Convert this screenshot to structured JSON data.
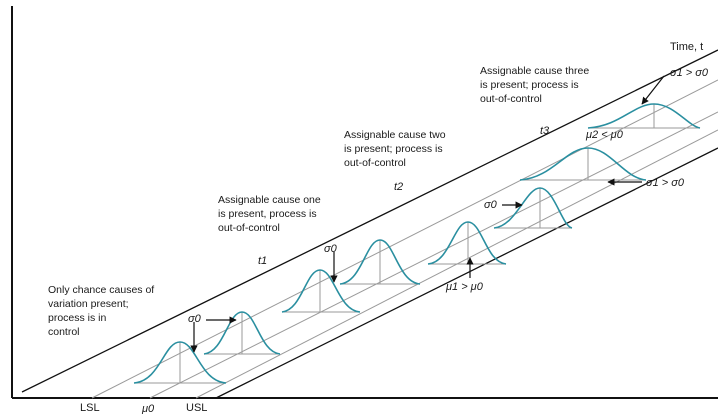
{
  "time_axis_label": "Time, t",
  "spec_limits": {
    "lsl": "LSL",
    "mu0": "μ0",
    "usl": "USL"
  },
  "time_marks": {
    "t1": "t1",
    "t2": "t2",
    "t3": "t3"
  },
  "annotations": {
    "in_control": [
      "Only chance causes of",
      "variation present;",
      "process is in",
      "control"
    ],
    "cause_one": [
      "Assignable cause one",
      "is present, process is",
      "out-of-control"
    ],
    "cause_two": [
      "Assignable cause two",
      "is present; process is",
      "out-of-control"
    ],
    "cause_three": [
      "Assignable cause three",
      "is present; process is",
      "out-of-control"
    ]
  },
  "labels": {
    "sigma0_a": "σ0",
    "sigma0_b": "σ0",
    "sigma0_c": "σ0",
    "mu1_gt_mu0": "μ1 > μ0",
    "sigma1_gt_sigma0_mid": "σ1 > σ0",
    "mu2_lt_mu0": "μ2 < μ0",
    "sigma1_gt_sigma0_top": "σ1 > σ0"
  },
  "colors": {
    "curve": "#2a8fa0",
    "line": "#111111",
    "guide": "#9a9a9a"
  }
}
